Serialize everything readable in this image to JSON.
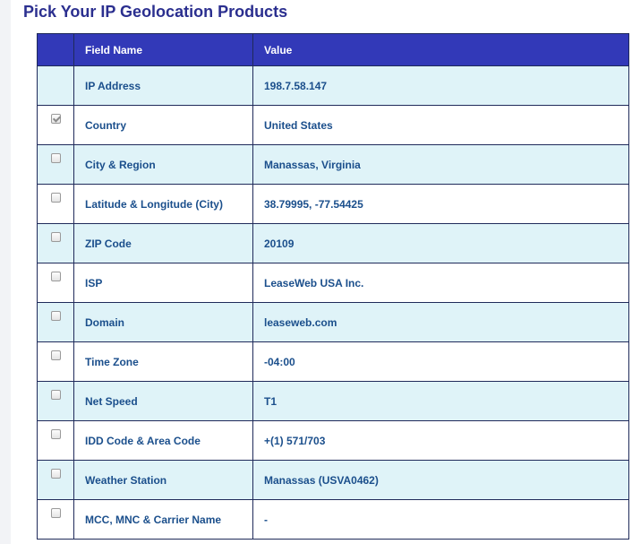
{
  "page": {
    "title": "Pick Your IP Geolocation Products"
  },
  "table": {
    "headers": {
      "field": "Field Name",
      "value": "Value"
    },
    "rows": [
      {
        "field": "IP Address",
        "value": "198.7.58.147",
        "checkbox": "none"
      },
      {
        "field": "Country",
        "value": "United States",
        "checkbox": "checked-disabled"
      },
      {
        "field": "City & Region",
        "value": "Manassas, Virginia",
        "checkbox": "unchecked"
      },
      {
        "field": "Latitude & Longitude (City)",
        "value": "38.79995, -77.54425",
        "checkbox": "unchecked"
      },
      {
        "field": "ZIP Code",
        "value": "20109",
        "checkbox": "unchecked"
      },
      {
        "field": "ISP",
        "value": "LeaseWeb USA Inc.",
        "checkbox": "unchecked"
      },
      {
        "field": "Domain",
        "value": "leaseweb.com",
        "checkbox": "unchecked"
      },
      {
        "field": "Time Zone",
        "value": "-04:00",
        "checkbox": "unchecked"
      },
      {
        "field": "Net Speed",
        "value": "T1",
        "checkbox": "unchecked"
      },
      {
        "field": "IDD Code & Area Code",
        "value": "+(1) 571/703",
        "checkbox": "unchecked"
      },
      {
        "field": "Weather Station",
        "value": "Manassas (USVA0462)",
        "checkbox": "unchecked"
      },
      {
        "field": "MCC, MNC & Carrier Name",
        "value": "-",
        "checkbox": "unchecked"
      }
    ]
  },
  "colors": {
    "title": "#2b2f8f",
    "header_bg": "#3239b8",
    "row_shaded": "#dff3f8",
    "cell_text": "#1b4f8c",
    "border": "#1f2a5a"
  }
}
